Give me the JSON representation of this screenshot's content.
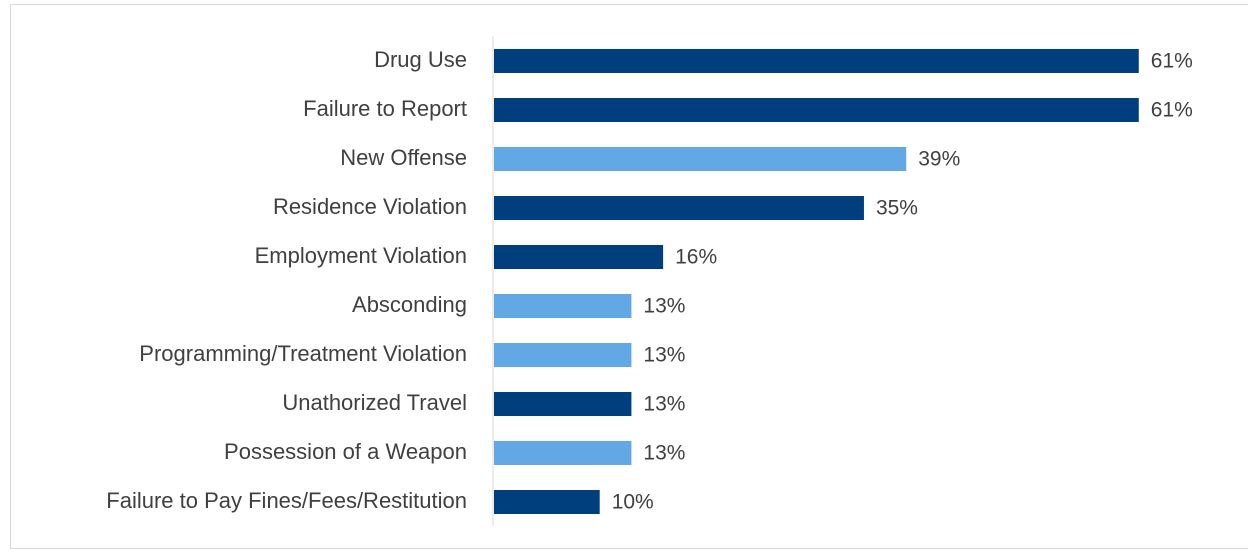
{
  "chart_data": {
    "type": "bar",
    "orientation": "horizontal",
    "categories": [
      "Drug Use",
      "Failure to Report",
      "New Offense",
      "Residence Violation",
      "Employment Violation",
      "Absconding",
      "Programming/Treatment Violation",
      "Unathorized Travel",
      "Possession of a Weapon",
      "Failure to Pay Fines/Fees/Restitution"
    ],
    "values": [
      61,
      61,
      39,
      35,
      16,
      13,
      13,
      13,
      13,
      10
    ],
    "value_labels": [
      "61%",
      "61%",
      "39%",
      "35%",
      "16%",
      "13%",
      "13%",
      "13%",
      "13%",
      "10%"
    ],
    "colors": [
      "#003f7d",
      "#003f7d",
      "#62a8e5",
      "#003f7d",
      "#003f7d",
      "#62a8e5",
      "#62a8e5",
      "#003f7d",
      "#62a8e5",
      "#003f7d"
    ]
  }
}
